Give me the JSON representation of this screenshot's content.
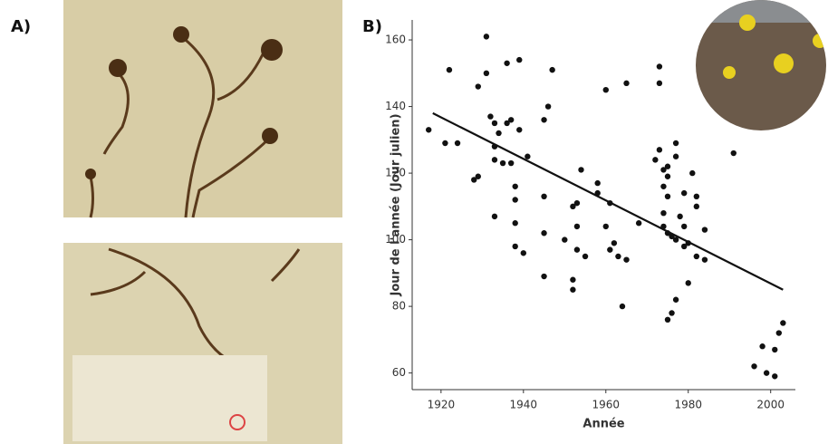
{
  "figure": {
    "panel_a_label": "A)"
  },
  "chart_data": {
    "type": "scatter",
    "panel_label": "B)",
    "x_label": "Année",
    "y_label": "Jour de l'année (Jour julien)",
    "color": "#111111",
    "line_color": "#111111",
    "x": [
      1917,
      1921,
      1922,
      1924,
      1928,
      1929,
      1929,
      1931,
      1931,
      1932,
      1933,
      1933,
      1933,
      1933,
      1934,
      1935,
      1936,
      1936,
      1937,
      1937,
      1938,
      1938,
      1938,
      1938,
      1939,
      1939,
      1940,
      1941,
      1945,
      1945,
      1945,
      1945,
      1946,
      1947,
      1950,
      1952,
      1952,
      1952,
      1953,
      1953,
      1953,
      1954,
      1955,
      1958,
      1958,
      1960,
      1960,
      1961,
      1961,
      1962,
      1963,
      1964,
      1965,
      1965,
      1968,
      1972,
      1973,
      1973,
      1973,
      1974,
      1974,
      1974,
      1974,
      1975,
      1975,
      1975,
      1975,
      1975,
      1976,
      1976,
      1977,
      1977,
      1977,
      1977,
      1978,
      1979,
      1979,
      1979,
      1980,
      1980,
      1981,
      1982,
      1982,
      1982,
      1984,
      1984,
      1991,
      1996,
      1998,
      1999,
      2001,
      2001,
      2002,
      2003
    ],
    "values": [
      133,
      129,
      151,
      129,
      118,
      119,
      146,
      150,
      161,
      137,
      135,
      128,
      124,
      107,
      132,
      123,
      153,
      135,
      123,
      136,
      116,
      112,
      105,
      98,
      154,
      133,
      96,
      125,
      136,
      113,
      102,
      89,
      140,
      151,
      100,
      88,
      85,
      110,
      104,
      97,
      111,
      121,
      95,
      117,
      114,
      145,
      104,
      111,
      97,
      99,
      95,
      80,
      147,
      94,
      105,
      124,
      127,
      152,
      147,
      121,
      116,
      108,
      104,
      122,
      119,
      113,
      102,
      76,
      101,
      78,
      129,
      125,
      100,
      82,
      107,
      114,
      104,
      98,
      99,
      87,
      120,
      113,
      110,
      95,
      103,
      94,
      126,
      62,
      68,
      60,
      59,
      67,
      72,
      75
    ],
    "trend": {
      "x": [
        1918,
        2003
      ],
      "y": [
        138,
        85
      ]
    },
    "xlim": [
      1913,
      2006
    ],
    "ylim": [
      55,
      166
    ],
    "xticks": [
      1920,
      1940,
      1960,
      1980,
      2000
    ],
    "yticks": [
      60,
      80,
      100,
      120,
      140,
      160
    ]
  }
}
